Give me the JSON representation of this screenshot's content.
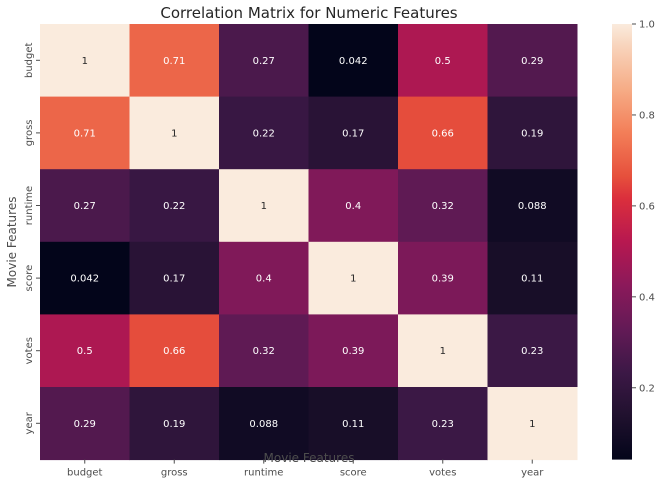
{
  "chart_data": {
    "type": "heatmap",
    "title": "Correlation Matrix for Numeric Features",
    "xlabel": "Movie Features",
    "ylabel": "Movie Features",
    "x_categories": [
      "budget",
      "gross",
      "runtime",
      "score",
      "votes",
      "year"
    ],
    "y_categories": [
      "budget",
      "gross",
      "runtime",
      "score",
      "votes",
      "year"
    ],
    "values": [
      [
        1,
        0.71,
        0.27,
        0.042,
        0.5,
        0.29
      ],
      [
        0.71,
        1,
        0.22,
        0.17,
        0.66,
        0.19
      ],
      [
        0.27,
        0.22,
        1,
        0.4,
        0.32,
        0.088
      ],
      [
        0.042,
        0.17,
        0.4,
        1,
        0.39,
        0.11
      ],
      [
        0.5,
        0.66,
        0.32,
        0.39,
        1,
        0.23
      ],
      [
        0.29,
        0.19,
        0.088,
        0.11,
        0.23,
        1
      ]
    ],
    "colorbar": {
      "range": [
        0.042,
        1
      ],
      "ticks": [
        "0.2",
        "0.4",
        "0.6",
        "0.8",
        "1.0"
      ],
      "colormap": "rocket"
    },
    "grid": false,
    "annotations": true
  }
}
